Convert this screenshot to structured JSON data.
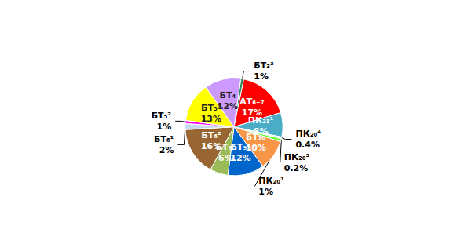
{
  "chart_data": {
    "type": "pie",
    "categories": [
      "БТ₃³",
      "АТ₆₋₇",
      "ПК₂₁¹",
      "ПК₂₀⁴",
      "ПК₂₀³",
      "ПК₂₀¹",
      "БТ₁₀",
      "БТ₉²",
      "БТ₉¹",
      "БТ₆²",
      "БТ₆¹",
      "БТ₅²",
      "БТ₅¹",
      "БТ₄"
    ],
    "values": [
      1,
      17,
      8,
      0.4,
      0.2,
      1,
      10,
      12,
      6,
      16,
      2,
      1,
      13,
      12
    ],
    "value_labels": [
      "1%",
      "17%",
      "8%",
      "0.4%",
      "0.2%",
      "1%",
      "10%",
      "12%",
      "6%",
      "16%",
      "2%",
      "1%",
      "13%",
      "12%"
    ],
    "colors": [
      "#2e8b57",
      "#ff0000",
      "#4bacc6",
      "#7fe5e5",
      "#8a8a5c",
      "#66ff33",
      "#f79646",
      "#0066cc",
      "#9bbb59",
      "#996633",
      "#c6d9f1",
      "#ff00ff",
      "#ffff00",
      "#cc99ff"
    ],
    "data_labels": true
  }
}
